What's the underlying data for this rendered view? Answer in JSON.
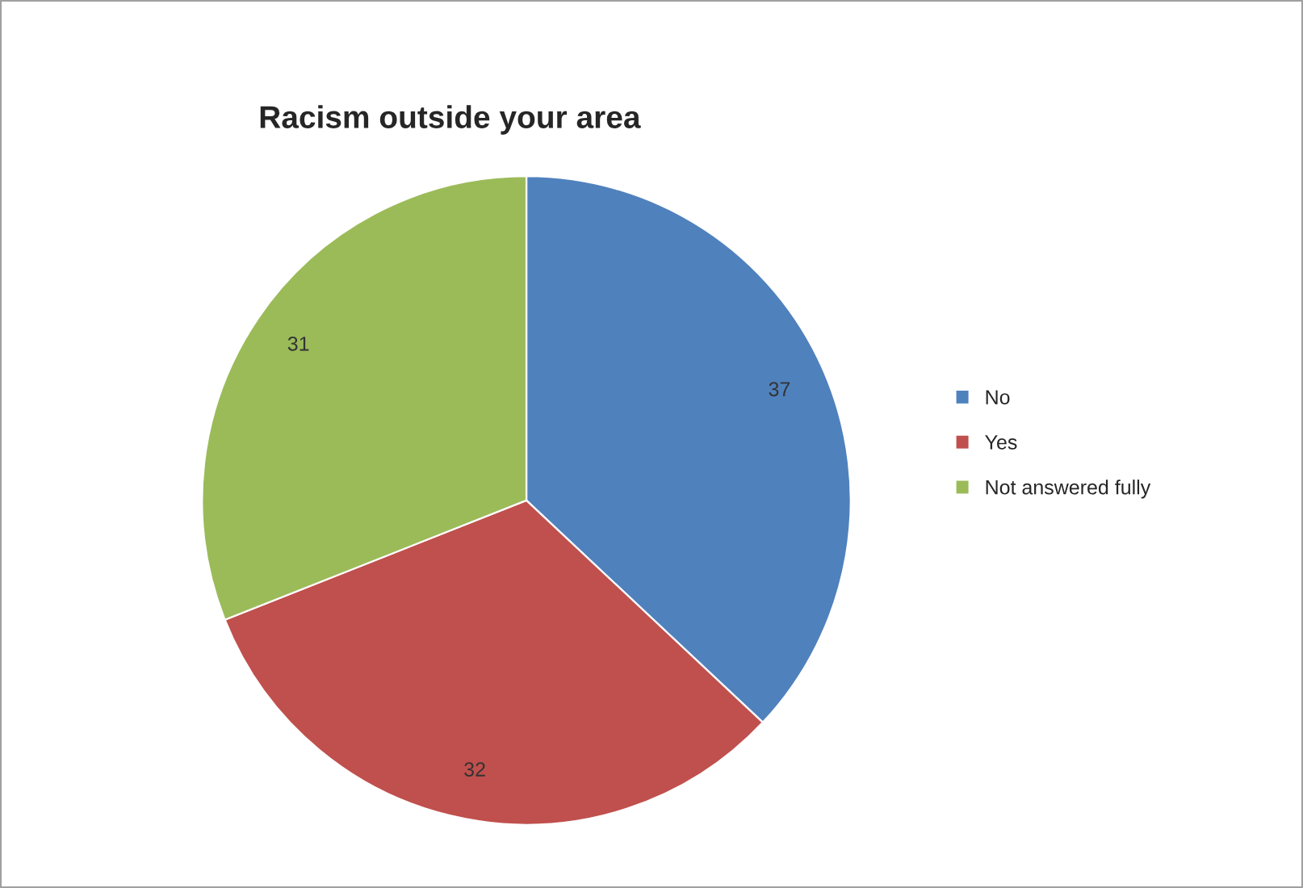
{
  "chart_data": {
    "type": "pie",
    "title": "Racism outside your area",
    "categories": [
      "No",
      "Yes",
      "Not answered fully"
    ],
    "values": [
      37,
      32,
      31
    ],
    "colors": [
      "#4f81bd",
      "#c0504d",
      "#9bbb59"
    ],
    "data_labels": true,
    "legend": "right"
  }
}
